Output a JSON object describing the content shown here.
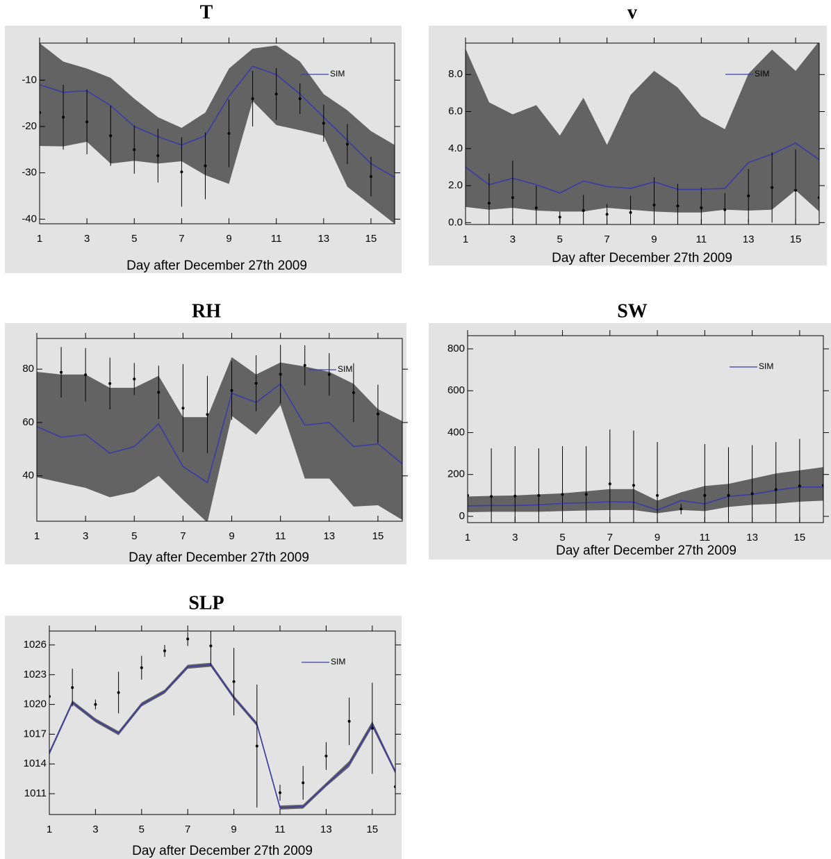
{
  "chart_data": [
    {
      "type": "line",
      "title": "T",
      "xlabel": "Day after December 27th 2009",
      "x": [
        1,
        2,
        3,
        4,
        5,
        6,
        7,
        8,
        9,
        10,
        11,
        12,
        13,
        14,
        15,
        16
      ],
      "xlim": [
        1,
        16
      ],
      "xticks": [
        1,
        3,
        5,
        7,
        9,
        11,
        13,
        15
      ],
      "ylim": [
        -41,
        -2
      ],
      "yticks": [
        -40,
        -30,
        -20,
        -10
      ],
      "legend": "top right",
      "series": [
        {
          "name": "SIM",
          "color": "#3b3ba8",
          "values": [
            -11,
            -12.6,
            -12.3,
            -15.5,
            -20,
            -22.2,
            -24,
            -22,
            -13.5,
            -7,
            -8.8,
            -13,
            -18,
            -23,
            -28,
            -31
          ]
        }
      ],
      "band": {
        "color": "#636363",
        "upper": [
          -2,
          -6,
          -7.5,
          -9.5,
          -14,
          -18,
          -20.3,
          -17,
          -7.5,
          -3.2,
          -2.5,
          -6,
          -13,
          -16.5,
          -21,
          -24
        ],
        "lower": [
          -24.2,
          -24.3,
          -23.3,
          -28,
          -27.4,
          -28,
          -27.5,
          -30.5,
          -32.4,
          -14.5,
          -19.7,
          -20.8,
          -22,
          -33,
          -37,
          -41
        ]
      },
      "obs": {
        "color": "#000000",
        "values": [
          -17,
          -18,
          -19,
          -22,
          -25,
          -26.3,
          -29.8,
          -28.5,
          -21.5,
          -14,
          -13,
          -14,
          -19.3,
          -23.8,
          -30.8,
          null
        ],
        "error": [
          0,
          7,
          7,
          6.5,
          5.2,
          5.8,
          7.5,
          7.2,
          7.3,
          6,
          5.6,
          3.3,
          4,
          4.3,
          4.3,
          null
        ]
      }
    },
    {
      "type": "line",
      "title": "v",
      "xlabel": "Day after December 27th 2009",
      "x": [
        1,
        2,
        3,
        4,
        5,
        6,
        7,
        8,
        9,
        10,
        11,
        12,
        13,
        14,
        15,
        16
      ],
      "xlim": [
        1,
        16
      ],
      "xticks": [
        1,
        3,
        5,
        7,
        9,
        11,
        13,
        15
      ],
      "ylim": [
        -0.1,
        9.7
      ],
      "yticks": [
        {
          "value": 0,
          "label": "0.0"
        },
        {
          "value": 2,
          "label": "2.0"
        },
        {
          "value": 4,
          "label": "4.0"
        },
        {
          "value": 6,
          "label": "6.0"
        },
        {
          "value": 8,
          "label": "8.0"
        }
      ],
      "legend": "top right",
      "series": [
        {
          "name": "SIM",
          "color": "#3b3ba8",
          "values": [
            3.0,
            2.05,
            2.4,
            2.05,
            1.6,
            2.25,
            1.95,
            1.85,
            2.2,
            1.8,
            1.8,
            1.85,
            3.25,
            3.7,
            4.3,
            3.4
          ]
        }
      ],
      "band": {
        "color": "#636363",
        "upper": [
          9.4,
          6.5,
          5.85,
          6.35,
          4.7,
          6.75,
          4.2,
          6.9,
          8.2,
          7.3,
          5.75,
          5.05,
          8.05,
          9.35,
          8.2,
          9.8
        ],
        "lower": [
          0.85,
          0.7,
          0.8,
          0.65,
          0.6,
          0.6,
          0.8,
          0.7,
          0.6,
          0.55,
          0.55,
          0.7,
          0.65,
          0.7,
          1.75,
          0.6
        ]
      },
      "obs": {
        "color": "#000000",
        "values": [
          null,
          1.05,
          1.35,
          0.8,
          0.3,
          0.65,
          0.45,
          0.55,
          0.95,
          0.9,
          0.8,
          0.7,
          1.45,
          1.9,
          1.75,
          1.35
        ],
        "error": [
          null,
          1.6,
          2.0,
          1.2,
          0.3,
          0.85,
          0.55,
          0.9,
          1.5,
          1.2,
          1.1,
          0.9,
          1.45,
          1.9,
          2.2,
          null
        ]
      }
    },
    {
      "type": "line",
      "title": "RH",
      "xlabel": "Day after December 27th 2009",
      "x": [
        1,
        2,
        3,
        4,
        5,
        6,
        7,
        8,
        9,
        10,
        11,
        12,
        13,
        14,
        15,
        16
      ],
      "xlim": [
        1,
        16
      ],
      "xticks": [
        1,
        3,
        5,
        7,
        9,
        11,
        13,
        15
      ],
      "ylim": [
        23,
        91.5
      ],
      "yticks": [
        40,
        60,
        80
      ],
      "legend": "top right",
      "series": [
        {
          "name": "SIM",
          "color": "#3b3ba8",
          "values": [
            58.5,
            54.5,
            55.5,
            48.5,
            51,
            59.5,
            43.5,
            37.5,
            71,
            67.5,
            74.5,
            59,
            60,
            51,
            52,
            44.5
          ]
        }
      ],
      "band": {
        "color": "#636363",
        "upper": [
          79,
          78,
          78,
          73,
          73,
          77.5,
          62,
          62,
          84.5,
          78,
          82.5,
          81,
          79,
          74.5,
          65,
          60.5
        ],
        "lower": [
          39.5,
          37.5,
          35.5,
          32,
          34,
          40,
          31,
          22.5,
          62.5,
          55.5,
          66.5,
          39,
          39,
          28.5,
          29,
          23.5
        ]
      },
      "obs": {
        "color": "#000000",
        "values": [
          null,
          78.8,
          77.9,
          74.6,
          76.3,
          71.3,
          65.4,
          63,
          72,
          74.7,
          78.1,
          81.4,
          78,
          71.2,
          63.2,
          null
        ],
        "error": [
          null,
          9.5,
          10,
          9.7,
          6,
          10,
          16.5,
          14.5,
          11,
          10.5,
          11,
          7.5,
          8,
          11,
          11,
          null
        ]
      }
    },
    {
      "type": "line",
      "title": "SW",
      "xlabel": "Day after December 27th 2009",
      "x": [
        1,
        2,
        3,
        4,
        5,
        6,
        7,
        8,
        9,
        10,
        11,
        12,
        13,
        14,
        15,
        16
      ],
      "xlim": [
        1,
        16
      ],
      "xticks": [
        1,
        3,
        5,
        7,
        9,
        11,
        13,
        15
      ],
      "ylim": [
        -30,
        863
      ],
      "yticks": [
        0,
        200,
        400,
        600,
        800
      ],
      "legend": "top right",
      "series": [
        {
          "name": "SIM",
          "color": "#3b3ba8",
          "values": [
            50,
            52,
            52,
            55,
            62,
            65,
            70,
            68,
            30,
            75,
            60,
            95,
            105,
            125,
            140,
            140
          ]
        }
      ],
      "band": {
        "color": "#636363",
        "upper": [
          95,
          98,
          100,
          105,
          110,
          120,
          130,
          130,
          75,
          115,
          145,
          155,
          180,
          205,
          220,
          235
        ],
        "lower": [
          20,
          22,
          22,
          22,
          25,
          28,
          30,
          30,
          15,
          30,
          25,
          45,
          55,
          60,
          70,
          75
        ]
      },
      "obs": {
        "color": "#000000",
        "values": [
          100,
          95,
          97,
          100,
          105,
          105,
          155,
          148,
          100,
          35,
          100,
          100,
          108,
          128,
          145,
          148
        ],
        "error": [
          0,
          230,
          238,
          225,
          230,
          230,
          260,
          262,
          255,
          25,
          245,
          230,
          232,
          227,
          225,
          null
        ]
      }
    },
    {
      "type": "line",
      "title": "SLP",
      "xlabel": "Day after December 27th 2009",
      "x": [
        1,
        2,
        3,
        4,
        5,
        6,
        7,
        8,
        9,
        10,
        11,
        12,
        13,
        14,
        15,
        16
      ],
      "xlim": [
        1,
        16
      ],
      "xticks": [
        1,
        3,
        5,
        7,
        9,
        11,
        13,
        15
      ],
      "ylim": [
        1008.9,
        1027.4
      ],
      "yticks": [
        1011,
        1014,
        1017,
        1020,
        1023,
        1026
      ],
      "legend": "top right",
      "series": [
        {
          "name": "SIM",
          "color": "#3b3ba8",
          "values": [
            1015.1,
            1020.2,
            1018.4,
            1017.1,
            1020.0,
            1021.3,
            1023.8,
            1024.0,
            1020.7,
            1018.0,
            1009.6,
            1009.7,
            1011.9,
            1014.0,
            1018.0,
            1013.2
          ]
        }
      ],
      "band": {
        "color": "#636363",
        "upper": [
          1015.3,
          1020.4,
          1018.6,
          1017.3,
          1020.2,
          1021.5,
          1024.0,
          1024.2,
          1020.9,
          1018.2,
          1009.8,
          1009.9,
          1012.1,
          1014.3,
          1018.3,
          1013.4
        ],
        "lower": [
          1014.9,
          1020.0,
          1018.2,
          1016.9,
          1019.8,
          1021.1,
          1023.6,
          1023.8,
          1020.5,
          1017.8,
          1009.4,
          1009.5,
          1011.7,
          1013.7,
          1017.7,
          1013.0
        ]
      },
      "obs": {
        "color": "#000000",
        "values": [
          1020.8,
          1021.7,
          1020.0,
          1021.2,
          1023.7,
          1025.4,
          1026.6,
          1025.9,
          1022.3,
          1015.8,
          1011.1,
          1012.1,
          1014.8,
          1018.3,
          1017.6,
          1011.7
        ],
        "error": [
          0,
          1.9,
          0.5,
          2.1,
          1.2,
          0.6,
          0.7,
          2.0,
          3.4,
          6.2,
          0.8,
          1.7,
          1.4,
          2.4,
          4.6,
          null
        ]
      }
    }
  ]
}
